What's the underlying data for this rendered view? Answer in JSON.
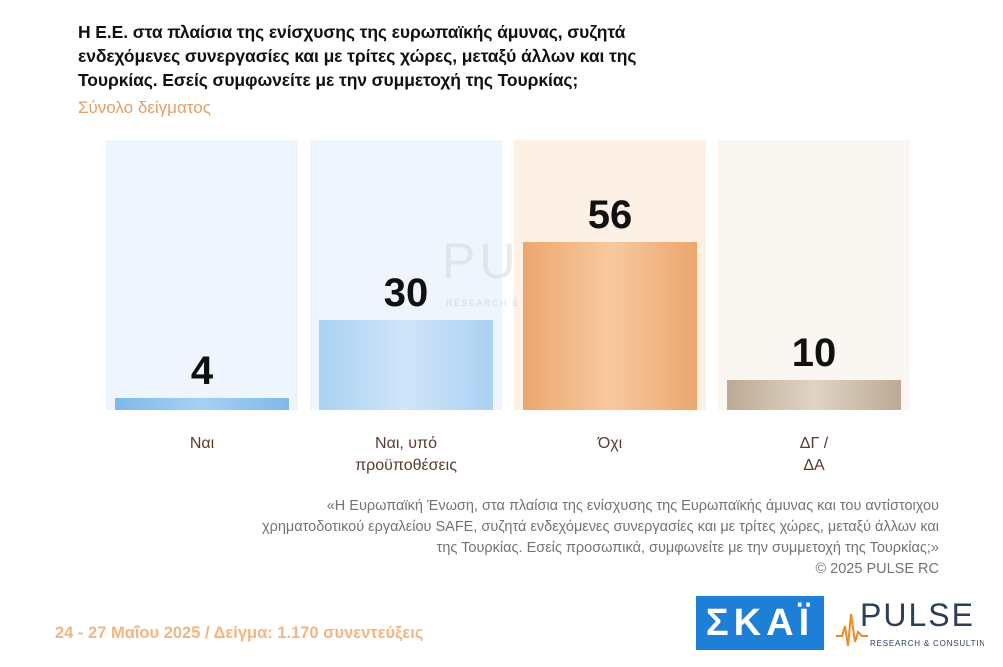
{
  "header": {
    "title": "Η Ε.Ε. στα πλαίσια της ενίσχυσης της ευρωπαϊκής άμυνας, συζητά ενδεχόμενες συνεργασίες και με τρίτες χώρες, μεταξύ άλλων και της Τουρκίας. Εσείς συμφωνείτε με την συμμετοχή της Τουρκίας;",
    "subtitle": "Σύνολο δείγματος"
  },
  "chart_data": {
    "type": "bar",
    "title": "Η Ε.Ε. στα πλαίσια της ενίσχυσης της ευρωπαϊκής άμυνας, συζητά ενδεχόμενες συνεργασίες και με τρίτες χώρες, μεταξύ άλλων και της Τουρκίας. Εσείς συμφωνείτε με την συμμετοχή της Τουρκίας;",
    "subtitle": "Σύνολο δείγματος",
    "categories": [
      [
        "Ναι"
      ],
      [
        "Ναι, υπό",
        "προϋποθέσεις"
      ],
      [
        "Όχι"
      ],
      [
        "ΔΓ /",
        "ΔΑ"
      ]
    ],
    "values": [
      4,
      30,
      56,
      10
    ],
    "value_labels": [
      "4",
      "30",
      "56",
      "10"
    ],
    "ylim": [
      0,
      60
    ],
    "grid": false,
    "legend": "none",
    "colors": [
      "#8cc2ef",
      "#b8d9f4",
      "#f0b27e",
      "#c8b8a6"
    ],
    "column_bg_colors": [
      "#eef5fc",
      "#eef5fc",
      "#fdf1e6",
      "#faf7f3"
    ]
  },
  "watermark": {
    "brand": "PULSE",
    "tagline": "RESEARCH & CONSULTING"
  },
  "note": {
    "quote": "«Η Ευρωπαϊκή Ένωση, στα πλαίσια της ενίσχυσης της Ευρωπαϊκής άμυνας και του αντίστοιχου χρηματοδοτικού εργαλείου SAFE, συζητά ενδεχόμενες συνεργασίες και με τρίτες χώρες, μεταξύ άλλων και της Τουρκίας. Εσείς προσωπικά, συμφωνείτε με την συμμετοχή της Τουρκίας;»",
    "copyright": "© 2025 PULSE RC"
  },
  "footer": {
    "dates_sample": "24 - 27 Μαΐου 2025  /  Δείγμα:  1.170 συνεντεύξεις",
    "skai_logo": "ΣΚΑΪ",
    "pulse_logo": "PULSE",
    "pulse_tagline": "RESEARCH & CONSULTING"
  }
}
